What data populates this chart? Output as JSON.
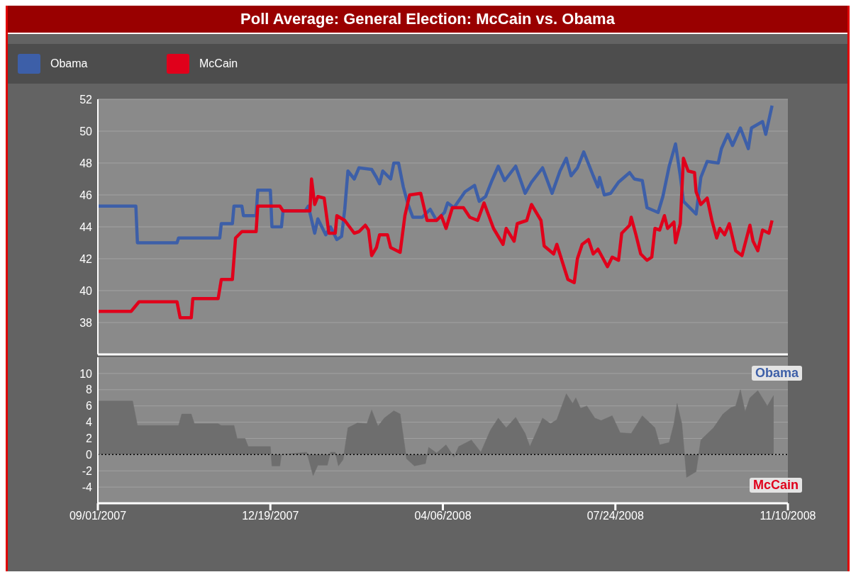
{
  "chart_data": [
    {
      "type": "line",
      "title": "Poll Average: General Election: McCain vs. Obama",
      "legend": "top left",
      "grid": "y",
      "tick_labels": "y",
      "ylim": [
        36,
        52
      ],
      "yticks": [
        38,
        40,
        42,
        44,
        46,
        48,
        50,
        52
      ],
      "xlim": [
        "2007-09-01",
        "2008-11-10"
      ],
      "series": [
        {
          "name": "Obama",
          "color": "#3d5fa8",
          "x": [
            "2007-09-01",
            "2007-09-25",
            "2007-09-26",
            "2007-10-21",
            "2007-10-22",
            "2007-11-17",
            "2007-11-18",
            "2007-11-25",
            "2007-11-26",
            "2007-12-01",
            "2007-12-02",
            "2007-12-10",
            "2007-12-11",
            "2007-12-19",
            "2007-12-20",
            "2007-12-26",
            "2007-12-27",
            "2008-01-10",
            "2008-01-12",
            "2008-01-16",
            "2008-01-18",
            "2008-01-23",
            "2008-01-26",
            "2008-01-30",
            "2008-02-02",
            "2008-02-04",
            "2008-02-06",
            "2008-02-10",
            "2008-02-13",
            "2008-02-21",
            "2008-02-24",
            "2008-02-26",
            "2008-02-28",
            "2008-03-04",
            "2008-03-06",
            "2008-03-09",
            "2008-03-12",
            "2008-03-15",
            "2008-03-18",
            "2008-03-24",
            "2008-03-29",
            "2008-04-02",
            "2008-04-07",
            "2008-04-09",
            "2008-04-13",
            "2008-04-20",
            "2008-04-26",
            "2008-04-29",
            "2008-05-03",
            "2008-05-07",
            "2008-05-11",
            "2008-05-15",
            "2008-05-22",
            "2008-05-28",
            "2008-06-01",
            "2008-06-08",
            "2008-06-14",
            "2008-06-19",
            "2008-06-23",
            "2008-06-26",
            "2008-06-30",
            "2008-07-04",
            "2008-07-10",
            "2008-07-13",
            "2008-07-14",
            "2008-07-17",
            "2008-07-21",
            "2008-07-26",
            "2008-08-02",
            "2008-08-05",
            "2008-08-10",
            "2008-08-13",
            "2008-08-20",
            "2008-08-23",
            "2008-08-27",
            "2008-08-31",
            "2008-09-03",
            "2008-09-05",
            "2008-09-13",
            "2008-09-16",
            "2008-09-20",
            "2008-09-27",
            "2008-09-29",
            "2008-10-03",
            "2008-10-06",
            "2008-10-11",
            "2008-10-16",
            "2008-10-18",
            "2008-10-25",
            "2008-10-27",
            "2008-10-31"
          ],
          "values": [
            45.3,
            45.3,
            43.0,
            43.0,
            43.3,
            43.3,
            44.2,
            44.2,
            45.3,
            45.3,
            44.7,
            44.7,
            46.3,
            46.3,
            44.0,
            44.0,
            45.0,
            45.0,
            45.3,
            43.6,
            44.5,
            43.5,
            44.0,
            43.2,
            43.4,
            45.1,
            47.5,
            47.0,
            47.7,
            47.6,
            47.1,
            46.7,
            47.5,
            47.0,
            48.0,
            48.0,
            46.5,
            45.4,
            44.6,
            44.6,
            45.1,
            44.4,
            44.9,
            45.5,
            45.2,
            46.2,
            46.6,
            45.6,
            45.9,
            46.9,
            47.8,
            46.9,
            47.8,
            46.1,
            46.8,
            47.7,
            46.1,
            47.5,
            48.3,
            47.2,
            47.7,
            48.7,
            47.2,
            46.5,
            47.1,
            46.0,
            46.1,
            46.8,
            47.4,
            47.0,
            46.9,
            45.2,
            44.9,
            45.9,
            47.8,
            49.2,
            47.2,
            45.6,
            44.8,
            47.1,
            48.1,
            48.0,
            48.9,
            49.8,
            49.1,
            50.2,
            48.9,
            50.2,
            50.6,
            49.8,
            51.6
          ]
        },
        {
          "name": "McCain",
          "color": "#e0001b",
          "x": [
            "2007-09-01",
            "2007-09-22",
            "2007-09-27",
            "2007-10-21",
            "2007-10-23",
            "2007-10-30",
            "2007-10-31",
            "2007-11-16",
            "2007-11-18",
            "2007-11-25",
            "2007-11-27",
            "2007-12-01",
            "2007-12-10",
            "2007-12-11",
            "2007-12-25",
            "2007-12-27",
            "2008-01-13",
            "2008-01-14",
            "2008-01-16",
            "2008-01-18",
            "2008-01-22",
            "2008-01-25",
            "2008-01-29",
            "2008-01-30",
            "2008-02-04",
            "2008-02-10",
            "2008-02-13",
            "2008-02-17",
            "2008-02-19",
            "2008-02-21",
            "2008-02-24",
            "2008-02-26",
            "2008-03-02",
            "2008-03-04",
            "2008-03-10",
            "2008-03-13",
            "2008-03-16",
            "2008-03-23",
            "2008-03-27",
            "2008-04-02",
            "2008-04-05",
            "2008-04-08",
            "2008-04-12",
            "2008-04-19",
            "2008-04-23",
            "2008-04-28",
            "2008-05-02",
            "2008-05-08",
            "2008-05-14",
            "2008-05-16",
            "2008-05-21",
            "2008-05-23",
            "2008-05-29",
            "2008-06-01",
            "2008-06-07",
            "2008-06-09",
            "2008-06-15",
            "2008-06-17",
            "2008-06-24",
            "2008-06-28",
            "2008-06-30",
            "2008-07-03",
            "2008-07-07",
            "2008-07-10",
            "2008-07-13",
            "2008-07-19",
            "2008-07-22",
            "2008-07-26",
            "2008-07-28",
            "2008-08-02",
            "2008-08-03",
            "2008-08-06",
            "2008-08-09",
            "2008-08-13",
            "2008-08-16",
            "2008-08-18",
            "2008-08-21",
            "2008-08-24",
            "2008-08-26",
            "2008-08-30",
            "2008-08-31",
            "2008-09-03",
            "2008-09-05",
            "2008-09-08",
            "2008-09-12",
            "2008-09-13",
            "2008-09-16",
            "2008-09-20",
            "2008-09-23",
            "2008-09-26",
            "2008-09-28",
            "2008-10-01",
            "2008-10-04",
            "2008-10-08",
            "2008-10-12",
            "2008-10-17",
            "2008-10-19",
            "2008-10-22",
            "2008-10-25",
            "2008-10-29",
            "2008-10-31"
          ],
          "values": [
            38.7,
            38.7,
            39.3,
            39.3,
            38.3,
            38.3,
            39.5,
            39.5,
            40.7,
            40.7,
            43.3,
            43.7,
            43.7,
            45.3,
            45.3,
            45.0,
            45.0,
            47.0,
            45.4,
            45.9,
            45.8,
            43.6,
            43.6,
            44.7,
            44.4,
            43.6,
            43.7,
            44.1,
            43.8,
            42.2,
            42.7,
            43.5,
            43.5,
            42.7,
            42.4,
            44.7,
            46.0,
            46.1,
            44.4,
            44.4,
            44.7,
            43.9,
            45.2,
            45.2,
            44.6,
            44.4,
            45.5,
            43.9,
            42.9,
            43.9,
            43.1,
            44.2,
            44.4,
            45.4,
            44.4,
            42.8,
            42.3,
            42.9,
            40.7,
            40.5,
            42.0,
            42.9,
            43.2,
            42.3,
            42.6,
            41.5,
            42.1,
            41.9,
            43.6,
            44.1,
            44.6,
            43.5,
            42.3,
            41.9,
            42.1,
            43.9,
            43.8,
            44.7,
            43.9,
            44.3,
            43.0,
            44.2,
            48.3,
            47.5,
            47.4,
            46.2,
            45.4,
            45.8,
            44.4,
            43.3,
            43.9,
            43.5,
            44.2,
            42.5,
            42.2,
            44.1,
            43.1,
            42.5,
            43.8,
            43.6,
            44.4
          ]
        }
      ]
    },
    {
      "type": "area",
      "grid": "y",
      "ylim": [
        -6,
        12
      ],
      "yticks": [
        -4,
        -2,
        0,
        2,
        4,
        6,
        8,
        10
      ],
      "xlim": [
        "2007-09-01",
        "2008-11-10"
      ],
      "xticks": [
        {
          "value": "2007-09-01",
          "label": "09/01/2007"
        },
        {
          "value": "2007-12-19",
          "label": "12/19/2007"
        },
        {
          "value": "2008-04-06",
          "label": "04/06/2008"
        },
        {
          "value": "2008-07-24",
          "label": "07/24/2008"
        },
        {
          "value": "2008-11-10",
          "label": "11/10/2008"
        }
      ],
      "annotations": [
        "Obama",
        "McCain"
      ],
      "ref_lines": [
        {
          "axis": "y",
          "value": 0,
          "color": "#000000",
          "line_style": "dotted"
        }
      ],
      "series": [
        {
          "color": "#6e6e6e",
          "x": [
            "2007-09-01",
            "2007-09-23",
            "2007-09-26",
            "2007-10-22",
            "2007-10-24",
            "2007-10-30",
            "2007-11-01",
            "2007-11-16",
            "2007-11-18",
            "2007-11-26",
            "2007-11-28",
            "2007-12-03",
            "2007-12-05",
            "2007-12-19",
            "2007-12-20",
            "2007-12-25",
            "2007-12-26",
            "2008-01-11",
            "2008-01-15",
            "2008-01-18",
            "2008-01-24",
            "2008-01-26",
            "2008-01-29",
            "2008-01-31",
            "2008-02-03",
            "2008-02-06",
            "2008-02-12",
            "2008-02-18",
            "2008-02-21",
            "2008-02-25",
            "2008-02-29",
            "2008-03-06",
            "2008-03-10",
            "2008-03-14",
            "2008-03-19",
            "2008-03-26",
            "2008-03-28",
            "2008-04-02",
            "2008-04-08",
            "2008-04-13",
            "2008-04-16",
            "2008-04-24",
            "2008-04-30",
            "2008-05-06",
            "2008-05-11",
            "2008-05-16",
            "2008-05-22",
            "2008-05-28",
            "2008-05-31",
            "2008-06-08",
            "2008-06-13",
            "2008-06-17",
            "2008-06-23",
            "2008-06-27",
            "2008-06-29",
            "2008-07-02",
            "2008-07-06",
            "2008-07-11",
            "2008-07-15",
            "2008-07-22",
            "2008-07-27",
            "2008-08-03",
            "2008-08-10",
            "2008-08-18",
            "2008-08-21",
            "2008-08-27",
            "2008-08-30",
            "2008-09-01",
            "2008-09-04",
            "2008-09-07",
            "2008-09-13",
            "2008-09-16",
            "2008-09-24",
            "2008-09-30",
            "2008-10-05",
            "2008-10-08",
            "2008-10-11",
            "2008-10-14",
            "2008-10-17",
            "2008-10-22",
            "2008-10-28",
            "2008-11-01"
          ],
          "values": [
            6.6,
            6.6,
            3.6,
            3.6,
            5.0,
            5.0,
            3.8,
            3.8,
            3.6,
            3.6,
            2.0,
            2.0,
            1.0,
            1.0,
            -1.4,
            -1.4,
            0,
            0.3,
            -2.6,
            -1.3,
            -1.3,
            0.3,
            0.3,
            -1.4,
            -0.6,
            3.3,
            3.9,
            3.8,
            5.5,
            3.5,
            4.5,
            5.4,
            5.0,
            -0.5,
            -1.4,
            -1.1,
            0.9,
            0.2,
            1.2,
            -0.3,
            1.0,
            1.8,
            0.3,
            3.0,
            4.5,
            3.3,
            4.6,
            2.6,
            1.0,
            4.5,
            3.8,
            4.3,
            7.5,
            6.3,
            7.0,
            5.7,
            6.0,
            4.5,
            4.2,
            4.8,
            2.7,
            2.6,
            4.8,
            3.3,
            1.2,
            1.5,
            3.8,
            6.3,
            3.8,
            -2.8,
            -2.1,
            1.8,
            3.3,
            5.0,
            5.8,
            6.0,
            8.0,
            5.3,
            7.0,
            7.9,
            6.0,
            7.3
          ]
        }
      ]
    }
  ]
}
